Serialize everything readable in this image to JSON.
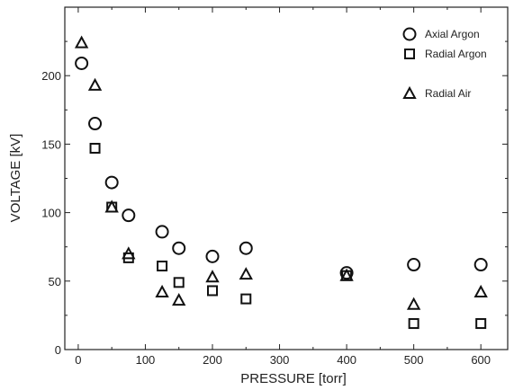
{
  "chart_data": {
    "type": "scatter",
    "title": "",
    "xlabel": "PRESSURE [torr]",
    "ylabel": "VOLTAGE [kV]",
    "xlim": [
      -20,
      640
    ],
    "ylim": [
      0,
      250
    ],
    "xticks": [
      0,
      100,
      200,
      300,
      400,
      500,
      600
    ],
    "yticks": [
      0,
      50,
      100,
      150,
      200
    ],
    "grid": false,
    "legend_position": "top-right",
    "series": [
      {
        "name": "Axial Argon",
        "marker": "circle",
        "color": "#111111",
        "x": [
          5,
          25,
          50,
          75,
          125,
          150,
          200,
          250,
          400,
          500,
          600
        ],
        "y": [
          209,
          165,
          122,
          98,
          86,
          74,
          68,
          74,
          56,
          62,
          62
        ]
      },
      {
        "name": "Radial Argon",
        "marker": "square",
        "color": "#111111",
        "x": [
          25,
          50,
          75,
          125,
          150,
          200,
          250,
          400,
          500,
          600
        ],
        "y": [
          147,
          104,
          67,
          61,
          49,
          43,
          37,
          54,
          19,
          19
        ]
      },
      {
        "name": "Radial Air",
        "marker": "triangle",
        "color": "#111111",
        "x": [
          5,
          25,
          50,
          75,
          125,
          150,
          200,
          250,
          400,
          500,
          600
        ],
        "y": [
          224,
          193,
          104,
          70,
          42,
          36,
          53,
          55,
          54,
          33,
          42
        ]
      }
    ]
  }
}
